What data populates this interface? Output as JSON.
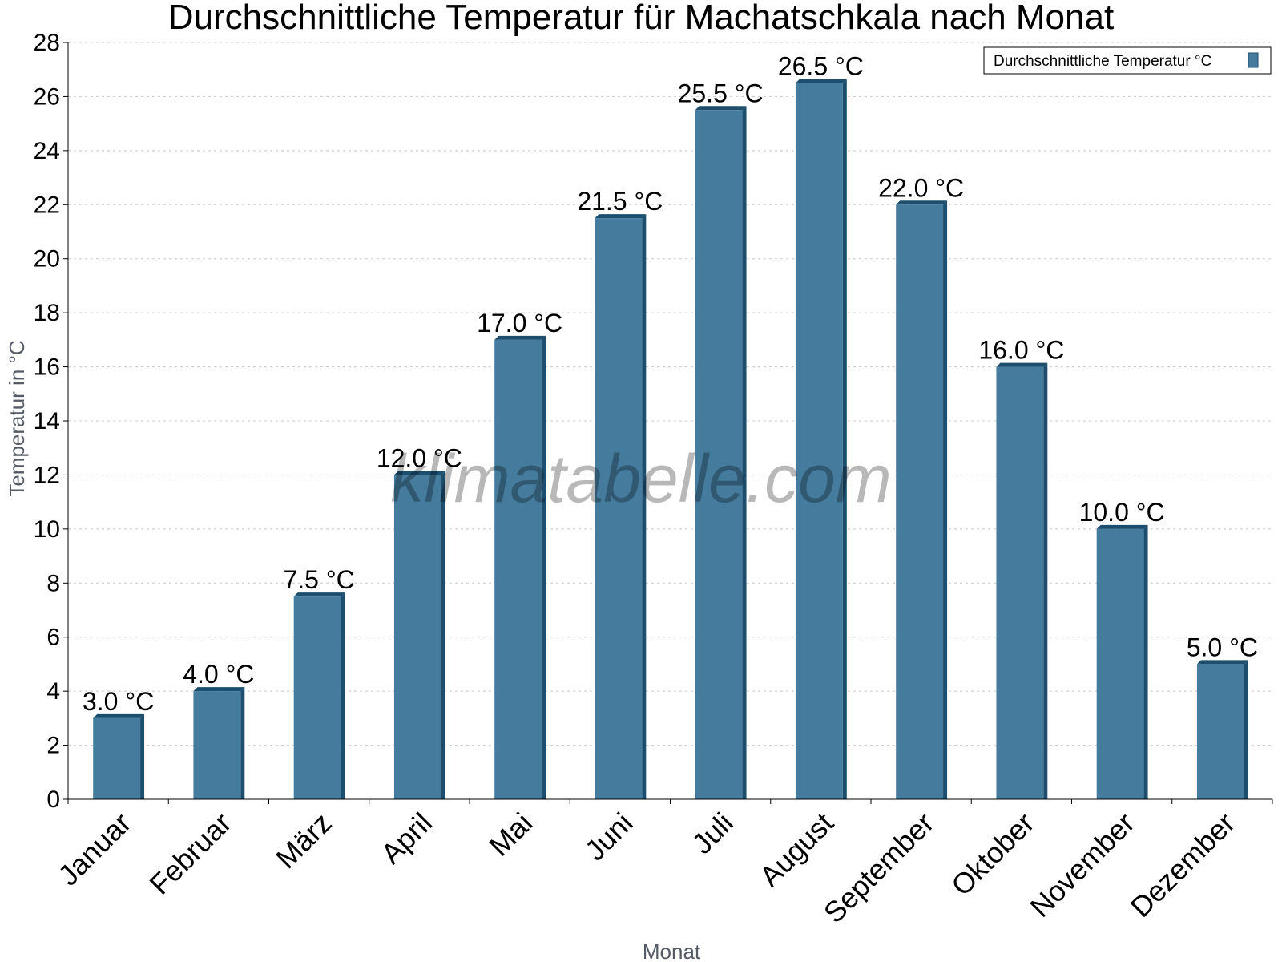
{
  "chart_data": {
    "type": "bar",
    "title": "Durchschnittliche Temperatur für Machatschkala nach Monat",
    "xlabel": "Monat",
    "ylabel": "Temperatur in °C",
    "categories": [
      "Januar",
      "Februar",
      "März",
      "April",
      "Mai",
      "Juni",
      "Juli",
      "August",
      "September",
      "Oktober",
      "November",
      "Dezember"
    ],
    "series": [
      {
        "name": "Durchschnittliche Temperatur °C",
        "values": [
          3.0,
          4.0,
          7.5,
          12.0,
          17.0,
          21.5,
          25.5,
          26.5,
          22.0,
          16.0,
          10.0,
          5.0
        ],
        "labels": [
          "3.0 °C",
          "4.0 °C",
          "7.5 °C",
          "12.0 °C",
          "17.0 °C",
          "21.5 °C",
          "25.5 °C",
          "26.5 °C",
          "22.0 °C",
          "16.0 °C",
          "10.0 °C",
          "5.0 °C"
        ]
      }
    ],
    "ylim": [
      0,
      28
    ],
    "yticks": [
      0,
      2,
      4,
      6,
      8,
      10,
      12,
      14,
      16,
      18,
      20,
      22,
      24,
      26,
      28
    ],
    "grid": true,
    "legend_position": "top-right",
    "colors": {
      "bar": "#457b9d",
      "bar_side": "#1d4e6e",
      "bar_top": "#1d4e6e",
      "grid": "#c8c8c8"
    }
  },
  "watermark": "klimatabelle.com"
}
